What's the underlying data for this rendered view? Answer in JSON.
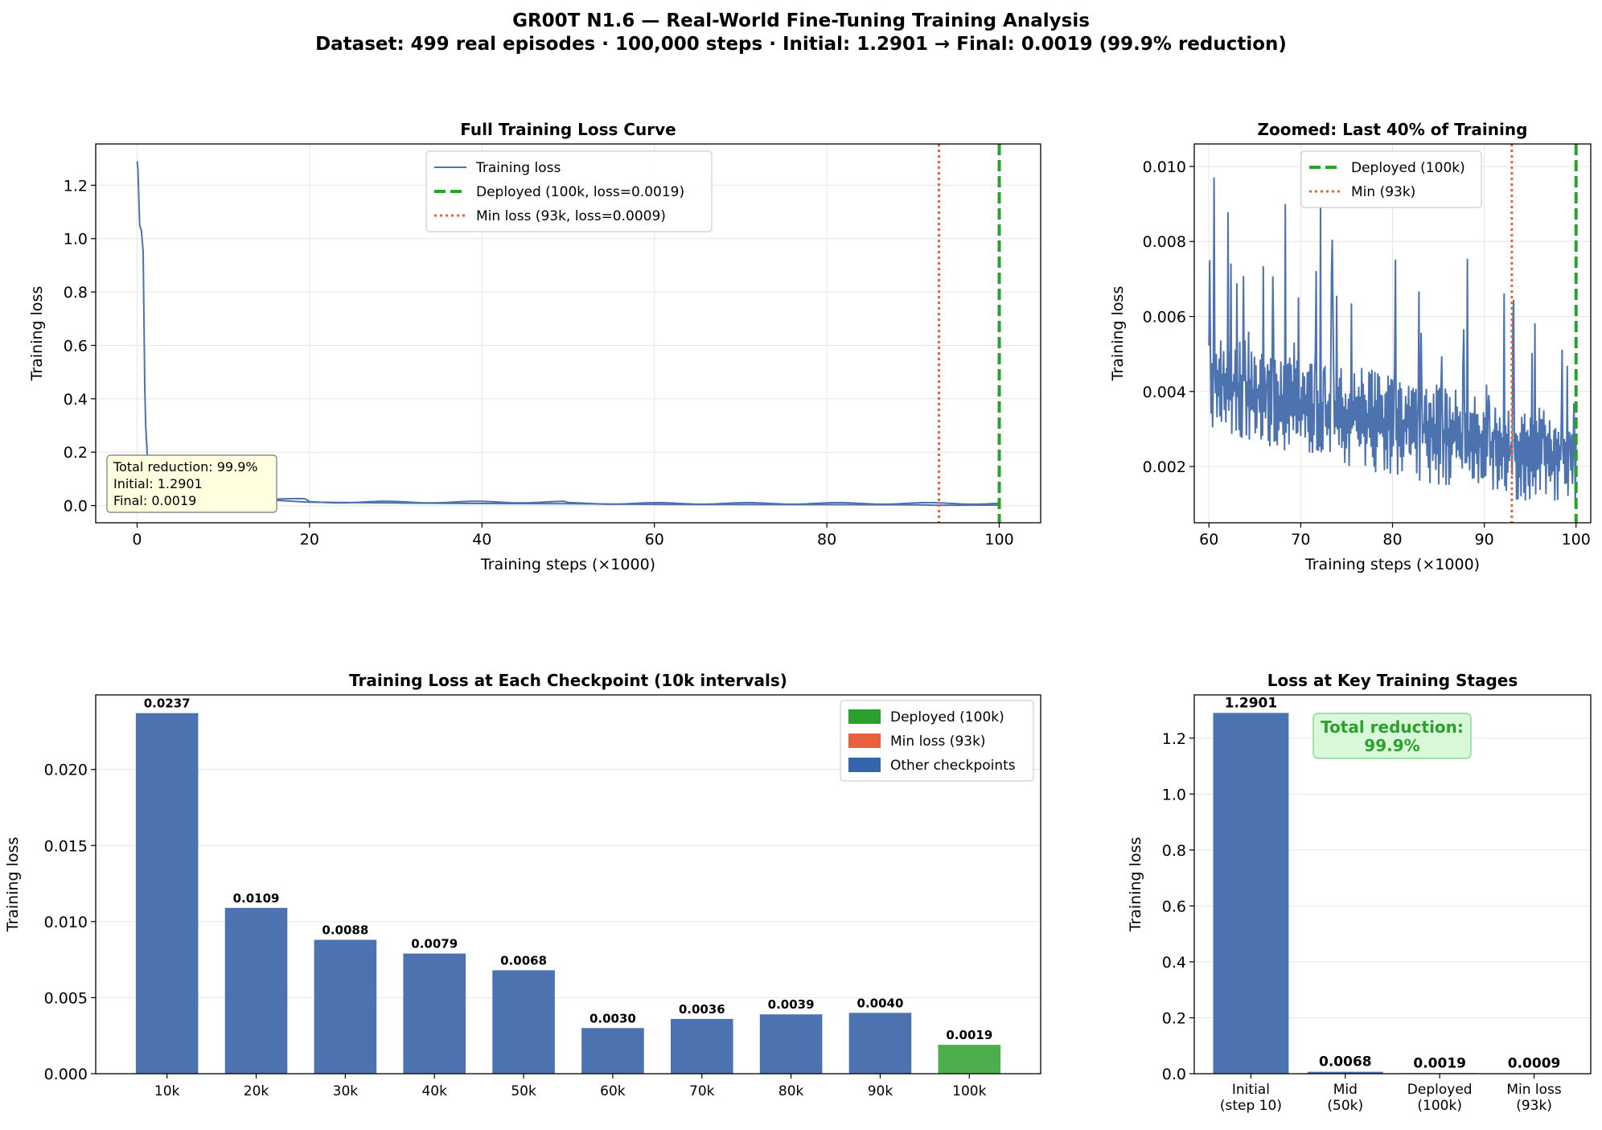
{
  "figure": {
    "title_line1": "GR00T N1.6 — Real-World Fine-Tuning Training Analysis",
    "title_line2": "Dataset: 499 real episodes · 100,000 steps · Initial: 1.2901 → Final: 0.0019 (99.9% reduction)"
  },
  "colors": {
    "series_blue": "#4c72b0",
    "deployed_green": "#2ca02c",
    "min_orange": "#e8603c",
    "other_bar_blue": "#3466ad",
    "grid": "#e6e6e6",
    "note_bg": "#ffffe0",
    "callout_bg": "#d9f7d9",
    "callout_text": "#2ca02c"
  },
  "chart_data": [
    {
      "id": "full_curve",
      "type": "line",
      "title": "Full Training Loss Curve",
      "xlabel": "Training steps (×1000)",
      "ylabel": "Training loss",
      "xlim": [
        -4.8,
        104.8
      ],
      "ylim": [
        -0.0645,
        1.3546
      ],
      "xticks": [
        0,
        20,
        40,
        60,
        80,
        100
      ],
      "yticks": [
        0.0,
        0.2,
        0.4,
        0.6,
        0.8,
        1.0,
        1.2
      ],
      "ytick_labels": [
        "0.0",
        "0.2",
        "0.4",
        "0.6",
        "0.8",
        "1.0",
        "1.2"
      ],
      "grid": true,
      "legend_position": "top-center",
      "series": [
        {
          "name": "Training loss",
          "x": [
            0,
            0.1,
            0.3,
            0.5,
            0.7,
            0.9,
            1.0,
            1.2,
            1.5,
            2,
            3,
            5,
            8,
            12,
            16,
            20,
            30,
            40,
            50,
            60,
            70,
            80,
            90,
            93,
            100
          ],
          "y": [
            1.29,
            1.26,
            1.05,
            1.03,
            0.95,
            0.43,
            0.3,
            0.18,
            0.09,
            0.05,
            0.035,
            0.03,
            0.025,
            0.022,
            0.02,
            0.0125,
            0.0095,
            0.0079,
            0.0068,
            0.0045,
            0.004,
            0.0035,
            0.003,
            0.0009,
            0.0019
          ]
        }
      ],
      "vlines": [
        {
          "name": "Deployed (100k, loss=0.0019)",
          "x": 100,
          "style": "dashed",
          "color": "#2ca02c"
        },
        {
          "name": "Min loss (93k, loss=0.0009)",
          "x": 93,
          "style": "dotted",
          "color": "#e8603c"
        }
      ],
      "annotation": [
        "Total reduction: 99.9%",
        "Initial: 1.2901",
        "Final: 0.0019"
      ]
    },
    {
      "id": "zoomed",
      "type": "line",
      "title": "Zoomed: Last 40% of Training",
      "xlabel": "Training steps (×1000)",
      "ylabel": "Training loss",
      "xlim": [
        58.4,
        101.6
      ],
      "ylim": [
        0.0005,
        0.0106
      ],
      "xticks": [
        60,
        70,
        80,
        90,
        100
      ],
      "yticks": [
        0.002,
        0.004,
        0.006,
        0.008,
        0.01
      ],
      "ytick_labels": [
        "0.002",
        "0.004",
        "0.006",
        "0.008",
        "0.010"
      ],
      "grid": true,
      "legend_position": "top-center",
      "series": [
        {
          "name": "Training loss",
          "x": [
            60,
            65,
            70,
            75,
            80,
            85,
            90,
            93,
            95,
            100
          ],
          "y": [
            0.0045,
            0.004,
            0.0037,
            0.0035,
            0.0032,
            0.003,
            0.0027,
            0.0022,
            0.0025,
            0.0022
          ],
          "low": [
            0.003,
            0.0026,
            0.0022,
            0.002,
            0.0017,
            0.0015,
            0.0013,
            0.001,
            0.0011,
            0.0009
          ],
          "high": [
            0.0101,
            0.0086,
            0.0096,
            0.0096,
            0.0087,
            0.0078,
            0.0076,
            0.0068,
            0.0064,
            0.0058
          ]
        }
      ],
      "vlines": [
        {
          "name": "Deployed (100k)",
          "x": 100,
          "style": "dashed",
          "color": "#2ca02c"
        },
        {
          "name": "Min (93k)",
          "x": 93,
          "style": "dotted",
          "color": "#e8603c"
        }
      ]
    },
    {
      "id": "checkpoints",
      "type": "bar",
      "title": "Training Loss at Each Checkpoint (10k intervals)",
      "xlabel": "",
      "ylabel": "Training loss",
      "ylim": [
        0,
        0.0249
      ],
      "yticks": [
        0.0,
        0.005,
        0.01,
        0.015,
        0.02
      ],
      "ytick_labels": [
        "0.000",
        "0.005",
        "0.010",
        "0.015",
        "0.020"
      ],
      "grid": true,
      "legend_position": "top-right",
      "categories": [
        "10k",
        "20k",
        "30k",
        "40k",
        "50k",
        "60k",
        "70k",
        "80k",
        "90k",
        "100k"
      ],
      "values": [
        0.0237,
        0.0109,
        0.0088,
        0.0079,
        0.0068,
        0.003,
        0.0036,
        0.0039,
        0.004,
        0.0019
      ],
      "value_labels": [
        "0.0237",
        "0.0109",
        "0.0088",
        "0.0079",
        "0.0068",
        "0.0030",
        "0.0036",
        "0.0039",
        "0.0040",
        "0.0019"
      ],
      "highlight": {
        "100k": "deployed"
      },
      "legend": [
        {
          "label": "Deployed (100k)",
          "color": "#2ca02c"
        },
        {
          "label": "Min loss (93k)",
          "color": "#e8603c"
        },
        {
          "label": "Other checkpoints",
          "color": "#3466ad"
        }
      ]
    },
    {
      "id": "stages",
      "type": "bar",
      "title": "Loss at Key Training Stages",
      "xlabel": "",
      "ylabel": "Training loss",
      "ylim": [
        0,
        1.3546
      ],
      "yticks": [
        0.0,
        0.2,
        0.4,
        0.6,
        0.8,
        1.0,
        1.2
      ],
      "ytick_labels": [
        "0.0",
        "0.2",
        "0.4",
        "0.6",
        "0.8",
        "1.0",
        "1.2"
      ],
      "grid": true,
      "categories": [
        [
          "Initial",
          "(step 10)"
        ],
        [
          "Mid",
          "(50k)"
        ],
        [
          "Deployed",
          "(100k)"
        ],
        [
          "Min loss",
          "(93k)"
        ]
      ],
      "values": [
        1.2901,
        0.0068,
        0.0019,
        0.0009
      ],
      "value_labels": [
        "1.2901",
        "0.0068",
        "0.0019",
        "0.0009"
      ],
      "callout": [
        "Total reduction:",
        "99.9%"
      ]
    }
  ]
}
